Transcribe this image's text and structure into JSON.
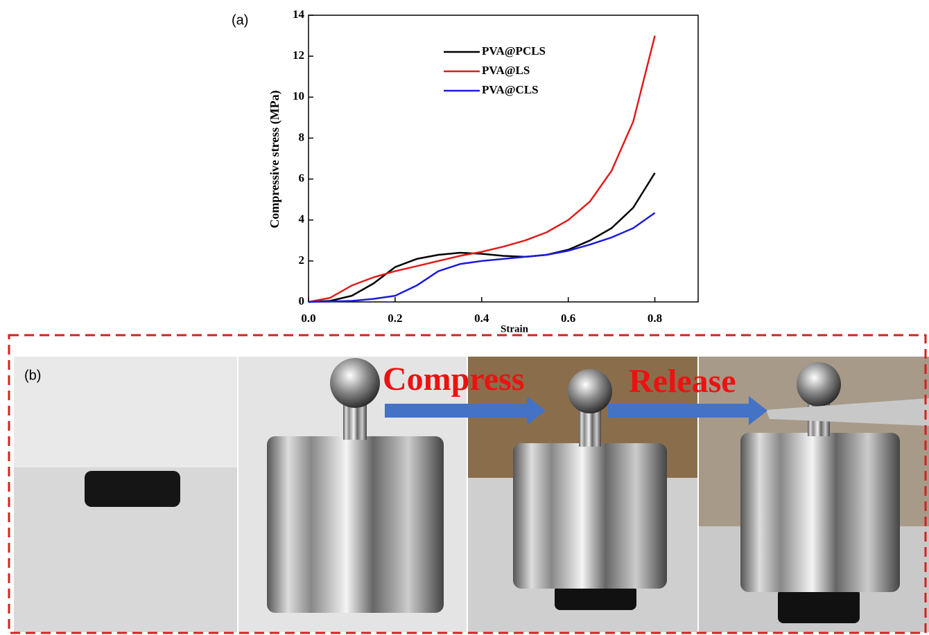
{
  "panel_labels": {
    "a": "(a)",
    "b": "(b)"
  },
  "photo_annotations": [
    "Compress",
    "Release"
  ],
  "chart_data": {
    "type": "line",
    "x_label": "Strain",
    "y_label": "Compressive stress (MPa)",
    "x": [
      0,
      0.05,
      0.1,
      0.15,
      0.2,
      0.25,
      0.3,
      0.35,
      0.4,
      0.45,
      0.5,
      0.55,
      0.6,
      0.65,
      0.7,
      0.75,
      0.8
    ],
    "series": [
      {
        "name": "PVA@PCLS",
        "color": "#000000",
        "values": [
          0,
          0.05,
          0.3,
          0.9,
          1.7,
          2.1,
          2.3,
          2.4,
          2.35,
          2.25,
          2.2,
          2.3,
          2.55,
          3.0,
          3.6,
          4.6,
          6.3
        ]
      },
      {
        "name": "PVA@LS",
        "color": "#e01b1b",
        "values": [
          0,
          0.2,
          0.8,
          1.2,
          1.5,
          1.75,
          2.0,
          2.25,
          2.45,
          2.7,
          3.0,
          3.4,
          4.0,
          4.9,
          6.4,
          8.8,
          13.0
        ]
      },
      {
        "name": "PVA@CLS",
        "color": "#1a1ae0",
        "values": [
          0,
          0.02,
          0.05,
          0.15,
          0.3,
          0.8,
          1.5,
          1.85,
          2.0,
          2.1,
          2.2,
          2.3,
          2.5,
          2.8,
          3.15,
          3.6,
          4.35
        ]
      }
    ],
    "xlim": [
      0,
      0.9
    ],
    "xticks": [
      {
        "value": 0,
        "label": "0.0"
      },
      0.2,
      0.4,
      0.6,
      0.8
    ],
    "ylim": [
      0,
      14
    ],
    "yticks": [
      0,
      2,
      4,
      6,
      8,
      10,
      12,
      14
    ],
    "grid": false
  }
}
